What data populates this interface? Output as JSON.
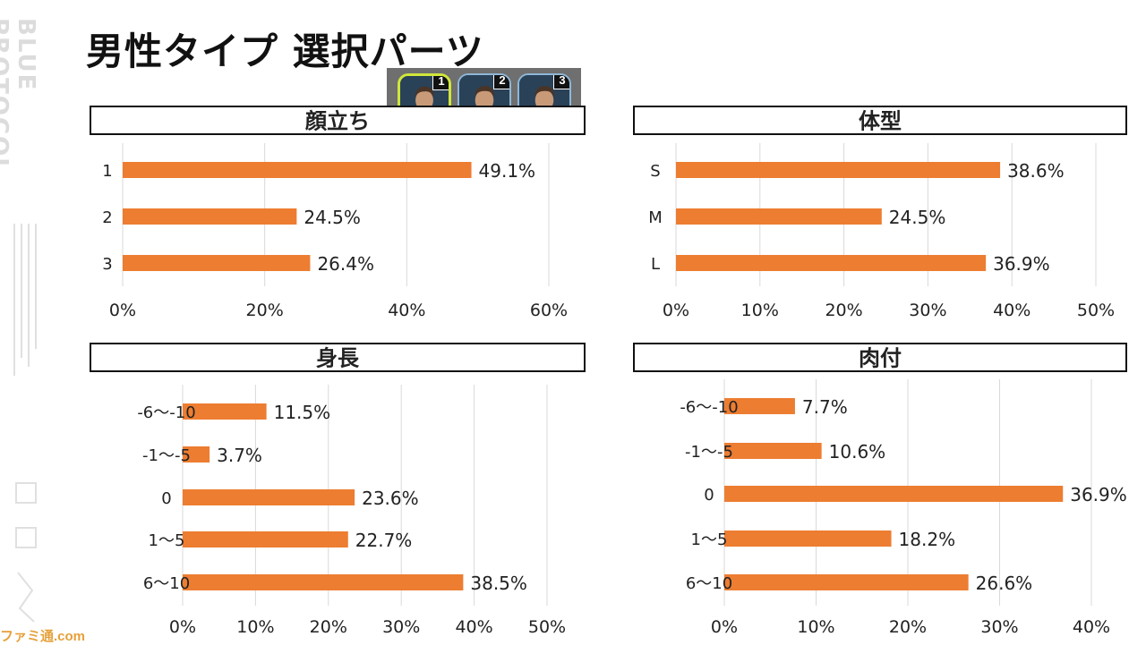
{
  "side_logo": {
    "text": "BLUE PROTOCOL"
  },
  "title": "男性タイプ 選択パーツ",
  "face_icons": [
    {
      "number": "1",
      "selected": true
    },
    {
      "number": "2",
      "selected": false
    },
    {
      "number": "3",
      "selected": false
    }
  ],
  "watermark": "ファミ通.com",
  "colors": {
    "bar": "#ED7D31",
    "grid": "#D9D9D9",
    "frame": "#111111"
  },
  "chart_data": [
    {
      "type": "bar",
      "orientation": "horizontal",
      "title": "顔立ち",
      "categories": [
        "1",
        "2",
        "3"
      ],
      "values": [
        49.1,
        24.5,
        26.4
      ],
      "value_labels": [
        "49.1%",
        "24.5%",
        "26.4%"
      ],
      "xlim": [
        0,
        60
      ],
      "xticks": [
        "0%",
        "20%",
        "40%",
        "60%"
      ],
      "grid": true
    },
    {
      "type": "bar",
      "orientation": "horizontal",
      "title": "体型",
      "categories": [
        "S",
        "M",
        "L"
      ],
      "values": [
        38.6,
        24.5,
        36.9
      ],
      "value_labels": [
        "38.6%",
        "24.5%",
        "36.9%"
      ],
      "xlim": [
        0,
        50
      ],
      "xticks": [
        "0%",
        "10%",
        "20%",
        "30%",
        "40%",
        "50%"
      ],
      "grid": true
    },
    {
      "type": "bar",
      "orientation": "horizontal",
      "title": "身長",
      "categories": [
        "-6～-10",
        "-1～-5",
        "0",
        "1～5",
        "6～10"
      ],
      "values": [
        11.5,
        3.7,
        23.6,
        22.7,
        38.5
      ],
      "value_labels": [
        "11.5%",
        "3.7%",
        "23.6%",
        "22.7%",
        "38.5%"
      ],
      "xlim": [
        0,
        50
      ],
      "xticks": [
        "0%",
        "10%",
        "20%",
        "30%",
        "40%",
        "50%"
      ],
      "grid": true
    },
    {
      "type": "bar",
      "orientation": "horizontal",
      "title": "肉付",
      "categories": [
        "-6～-10",
        "-1～-5",
        "0",
        "1～5",
        "6～10"
      ],
      "values": [
        7.7,
        10.6,
        36.9,
        18.2,
        26.6
      ],
      "value_labels": [
        "7.7%",
        "10.6%",
        "36.9%",
        "18.2%",
        "26.6%"
      ],
      "xlim": [
        0,
        40
      ],
      "xticks": [
        "0%",
        "10%",
        "20%",
        "30%",
        "40%"
      ],
      "grid": true
    }
  ]
}
